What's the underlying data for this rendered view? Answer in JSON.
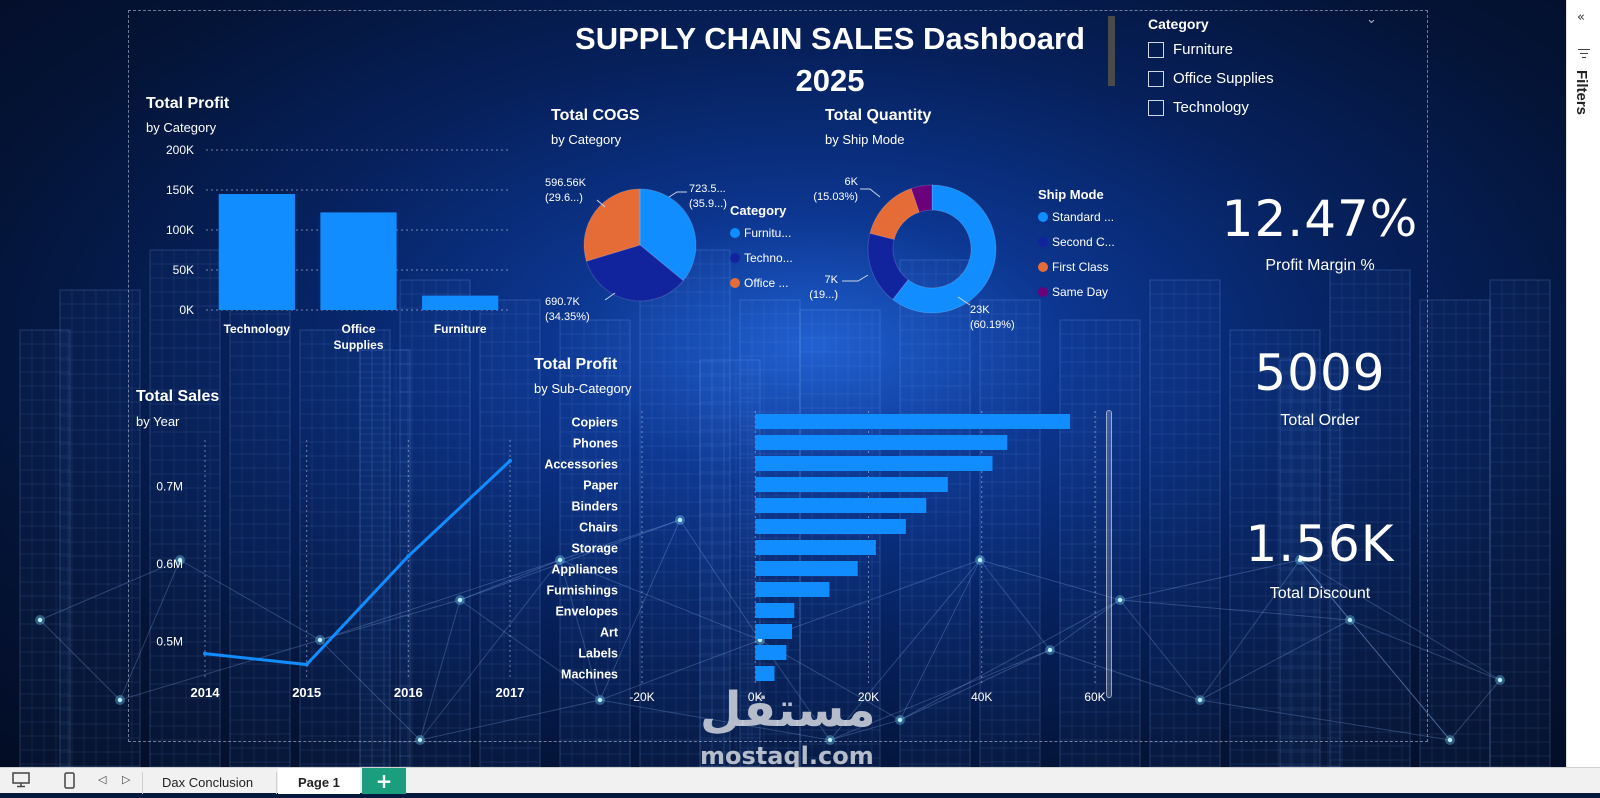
{
  "dashboard": {
    "title_line1": "SUPPLY CHAIN SALES Dashboard",
    "title_line2": "2025"
  },
  "slicer": {
    "title": "Category",
    "items": [
      "Furniture",
      "Office Supplies",
      "Technology"
    ]
  },
  "kpis": [
    {
      "value": "12.47%",
      "label": "Profit Margin %"
    },
    {
      "value": "5009",
      "label": "Total Order"
    },
    {
      "value": "1.56K",
      "label": "Total Discount"
    }
  ],
  "visual_titles": {
    "profit_category": {
      "title": "Total Profit",
      "subtitle": "by Category"
    },
    "cogs_category": {
      "title": "Total COGS",
      "subtitle": "by Category"
    },
    "qty_shipmode": {
      "title": "Total Quantity",
      "subtitle": "by Ship Mode"
    },
    "sales_year": {
      "title": "Total Sales",
      "subtitle": "by Year"
    },
    "profit_subcat": {
      "title": "Total Profit",
      "subtitle": "by Sub-Category"
    }
  },
  "chart_data": [
    {
      "id": "profit_by_category",
      "type": "bar",
      "categories": [
        "Technology",
        "Office Supplies",
        "Furniture"
      ],
      "category_lines": [
        [
          "Technology"
        ],
        [
          "Office",
          "Supplies"
        ],
        [
          "Furniture"
        ]
      ],
      "values": [
        145000,
        122000,
        18000
      ],
      "ylim": [
        0,
        200000
      ],
      "yticks": [
        0,
        50000,
        100000,
        150000,
        200000
      ],
      "ytick_labels": [
        "0K",
        "50K",
        "100K",
        "150K",
        "200K"
      ],
      "color": "#118dff"
    },
    {
      "id": "cogs_by_category",
      "type": "pie",
      "legend_title": "Category",
      "legend": [
        "Furnitu...",
        "Techno...",
        "Office ..."
      ],
      "slices": [
        {
          "name": "Furniture",
          "value": 723.5,
          "pct": 35.98,
          "color": "#118dff",
          "label1": "723.5...",
          "label2": "(35.9...)"
        },
        {
          "name": "Technology",
          "value": 690.7,
          "pct": 34.35,
          "color": "#12239e",
          "label1": "690.7K",
          "label2": "(34.35%)"
        },
        {
          "name": "Office Supplies",
          "value": 596.56,
          "pct": 29.67,
          "color": "#e66c37",
          "label1": "596.56K",
          "label2": "(29.6...)"
        }
      ]
    },
    {
      "id": "quantity_by_shipmode",
      "type": "pie",
      "donut": true,
      "legend_title": "Ship Mode",
      "legend": [
        "Standard ...",
        "Second C...",
        "First Class",
        "Same Day"
      ],
      "slices": [
        {
          "name": "Standard Class",
          "value": 23000,
          "pct": 60.19,
          "color": "#118dff",
          "label1": "23K",
          "label2": "(60.19%)"
        },
        {
          "name": "Second Class",
          "value": 7000,
          "pct": 19.46,
          "color": "#12239e",
          "label1": "7K",
          "label2": "(19...)"
        },
        {
          "name": "First Class",
          "value": 6000,
          "pct": 15.03,
          "color": "#e66c37",
          "label1": "6K",
          "label2": "(15.03%)"
        },
        {
          "name": "Same Day",
          "value": 2000,
          "pct": 5.32,
          "color": "#6b007b",
          "label1": "",
          "label2": ""
        }
      ]
    },
    {
      "id": "sales_by_year",
      "type": "line",
      "x": [
        "2014",
        "2015",
        "2016",
        "2017"
      ],
      "values": [
        484000,
        470000,
        610000,
        733000
      ],
      "ylim": [
        450000,
        760000
      ],
      "yticks": [
        500000,
        600000,
        700000
      ],
      "ytick_labels": [
        "0.5M",
        "0.6M",
        "0.7M"
      ],
      "color": "#118dff"
    },
    {
      "id": "profit_by_subcategory",
      "type": "bar",
      "orientation": "horizontal",
      "categories": [
        "Copiers",
        "Phones",
        "Accessories",
        "Paper",
        "Binders",
        "Chairs",
        "Storage",
        "Appliances",
        "Furnishings",
        "Envelopes",
        "Art",
        "Labels",
        "Machines"
      ],
      "values": [
        55600,
        44500,
        41900,
        34000,
        30200,
        26600,
        21300,
        18100,
        13100,
        6900,
        6500,
        5500,
        3400
      ],
      "xlim": [
        -20000,
        60000
      ],
      "xticks": [
        -20000,
        0,
        20000,
        40000,
        60000
      ],
      "xtick_labels": [
        "-20K",
        "0K",
        "20K",
        "40K",
        "60K"
      ],
      "color": "#118dff"
    }
  ],
  "filter_pane": {
    "label": "Filters"
  },
  "tabs": {
    "items": [
      "Dax Conclusion",
      "Page 1"
    ],
    "active": "Page 1",
    "add_label": "+"
  },
  "watermark": {
    "arabic": "مستقل",
    "latin": "mostaql.com"
  }
}
